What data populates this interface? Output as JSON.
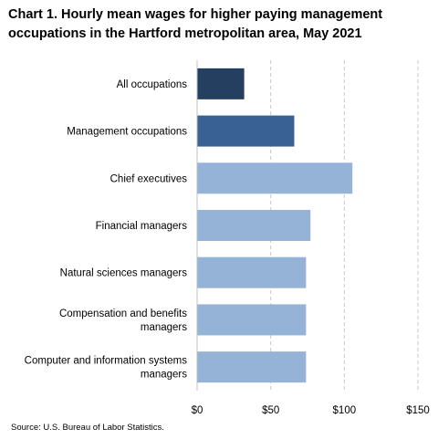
{
  "title": "Chart 1. Hourly mean wages for higher paying management occupations in the Hartford metropolitan area, May 2021",
  "source": "Source: U.S. Bureau of Labor Statistics.",
  "chart_data": {
    "type": "bar",
    "orientation": "horizontal",
    "categories": [
      "All occupations",
      "Management occupations",
      "Chief executives",
      "Financial managers",
      "Natural sciences managers",
      "Compensation and benefits managers",
      "Computer and information systems managers"
    ],
    "category_label_lines": [
      [
        "All occupations"
      ],
      [
        "Management occupations"
      ],
      [
        "Chief executives"
      ],
      [
        "Financial managers"
      ],
      [
        "Natural sciences managers"
      ],
      [
        "Compensation and benefits",
        "managers"
      ],
      [
        "Computer and information systems",
        "managers"
      ]
    ],
    "values": [
      32.0,
      66.0,
      105.5,
      77.0,
      74.0,
      74.0,
      74.0
    ],
    "bar_colors": [
      "#253f61",
      "#3a6193",
      "#95b3d7",
      "#95b3d7",
      "#95b3d7",
      "#95b3d7",
      "#95b3d7"
    ],
    "xlim": [
      0,
      150
    ],
    "x_ticks": [
      0,
      50,
      100,
      150
    ],
    "x_tick_labels": [
      "$0",
      "$50",
      "$100",
      "$150"
    ],
    "grid": "vertical dashed",
    "xlabel": "",
    "ylabel": ""
  }
}
